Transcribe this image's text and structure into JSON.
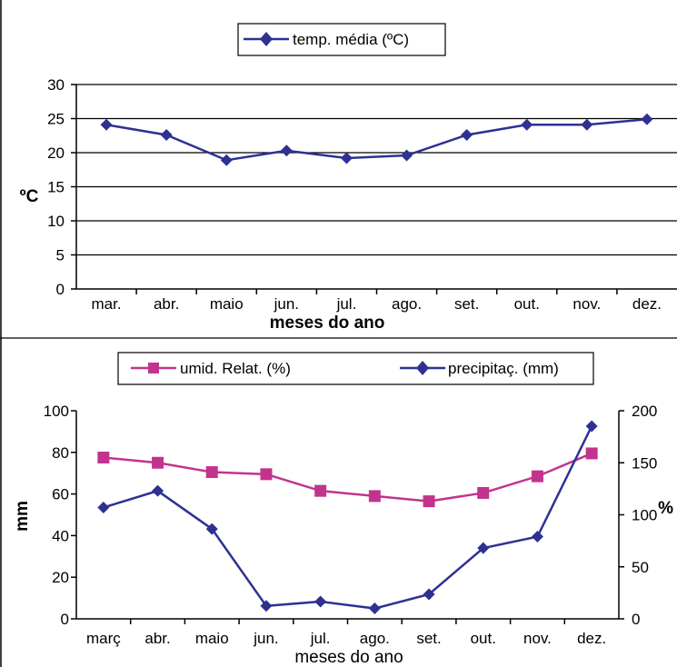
{
  "chart_data": [
    {
      "type": "line",
      "categories": [
        "mar.",
        "abr.",
        "maio",
        "jun.",
        "jul.",
        "ago.",
        "set.",
        "out.",
        "nov.",
        "dez."
      ],
      "series": [
        {
          "name": "temp. média (ºC)",
          "values": [
            24.1,
            22.6,
            18.9,
            20.3,
            19.2,
            19.6,
            22.6,
            24.1,
            24.1,
            24.9
          ],
          "color": "#2e3192",
          "marker": "diamond"
        }
      ],
      "ylabel": "ºC",
      "xlabel": "meses do ano",
      "ylim": [
        0,
        30
      ],
      "yticks": [
        0,
        5,
        10,
        15,
        20,
        25,
        30
      ],
      "grid": true,
      "legend": "top-center"
    },
    {
      "type": "line",
      "categories": [
        "març",
        "abr.",
        "maio",
        "jun.",
        "jul.",
        "ago.",
        "set.",
        "out.",
        "nov.",
        "dez."
      ],
      "series": [
        {
          "name": "umid. Relat. (%)",
          "axis": "right",
          "values": [
            155,
            150,
            141,
            139,
            123,
            118,
            113,
            121,
            137,
            159
          ],
          "color": "#c2338e",
          "marker": "square"
        },
        {
          "name": "precipitaç. (mm)",
          "axis": "left",
          "values": [
            53.5,
            61.5,
            43.2,
            6.2,
            8.3,
            5.0,
            11.8,
            34.0,
            39.5,
            92.6
          ],
          "color": "#2e3192",
          "marker": "diamond"
        }
      ],
      "ylabel": "mm",
      "y2label": "%",
      "xlabel": "meses do ano",
      "ylim": [
        0,
        100
      ],
      "yticks": [
        0,
        20,
        40,
        60,
        80,
        100
      ],
      "y2lim": [
        0,
        200
      ],
      "y2ticks": [
        0,
        50,
        100,
        150,
        200
      ],
      "grid": false,
      "legend": "top"
    }
  ]
}
